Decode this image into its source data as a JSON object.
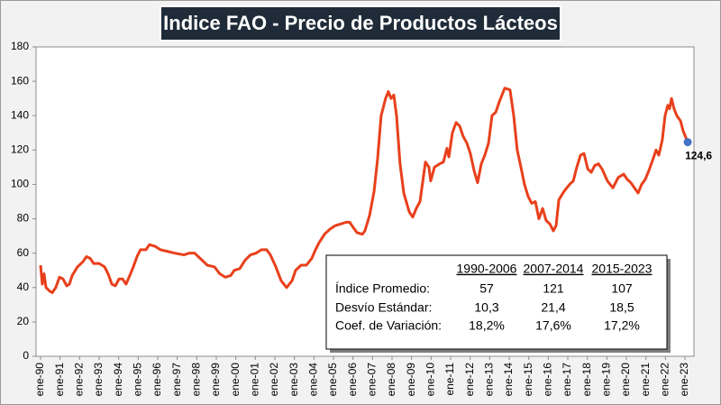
{
  "chart_data": {
    "type": "line",
    "title": "Indice FAO - Precio de Productos Lácteos",
    "color": "#e8401c",
    "label_marker_color": "#4472c4",
    "xlim": [
      1989.77,
      2023.46
    ],
    "ylim": [
      0,
      180
    ],
    "yticks": [
      0,
      20,
      40,
      60,
      80,
      100,
      120,
      140,
      160,
      180
    ],
    "xticks": [
      {
        "value": 1990,
        "label": "ene-90"
      },
      {
        "value": 1991,
        "label": "ene-91"
      },
      {
        "value": 1992,
        "label": "ene-92"
      },
      {
        "value": 1993,
        "label": "ene-93"
      },
      {
        "value": 1994,
        "label": "ene-94"
      },
      {
        "value": 1995,
        "label": "ene-95"
      },
      {
        "value": 1996,
        "label": "ene-96"
      },
      {
        "value": 1997,
        "label": "ene-97"
      },
      {
        "value": 1998,
        "label": "ene-98"
      },
      {
        "value": 1999,
        "label": "ene-99"
      },
      {
        "value": 2000,
        "label": "ene-00"
      },
      {
        "value": 2001,
        "label": "ene-01"
      },
      {
        "value": 2002,
        "label": "ene-02"
      },
      {
        "value": 2003,
        "label": "ene-03"
      },
      {
        "value": 2004,
        "label": "ene-04"
      },
      {
        "value": 2005,
        "label": "ene-05"
      },
      {
        "value": 2006,
        "label": "ene-06"
      },
      {
        "value": 2007,
        "label": "ene-07"
      },
      {
        "value": 2008,
        "label": "ene-08"
      },
      {
        "value": 2009,
        "label": "ene-09"
      },
      {
        "value": 2010,
        "label": "ene-10"
      },
      {
        "value": 2011,
        "label": "ene-11"
      },
      {
        "value": 2012,
        "label": "ene-12"
      },
      {
        "value": 2013,
        "label": "ene-13"
      },
      {
        "value": 2014,
        "label": "ene-14"
      },
      {
        "value": 2015,
        "label": "ene-15"
      },
      {
        "value": 2016,
        "label": "ene-16"
      },
      {
        "value": 2017,
        "label": "ene-17"
      },
      {
        "value": 2018,
        "label": "ene-18"
      },
      {
        "value": 2019,
        "label": "ene-19"
      },
      {
        "value": 2020,
        "label": "ene-20"
      },
      {
        "value": 2021,
        "label": "ene-21"
      },
      {
        "value": 2022,
        "label": "ene-22"
      },
      {
        "value": 2023,
        "label": "ene-23"
      }
    ],
    "x": [
      1990.0,
      1990.09,
      1990.18,
      1990.28,
      1990.46,
      1990.6,
      1990.78,
      1990.97,
      1991.15,
      1991.34,
      1991.48,
      1991.62,
      1991.89,
      1992.17,
      1992.35,
      1992.54,
      1992.72,
      1993.0,
      1993.28,
      1993.46,
      1993.65,
      1993.83,
      1994.02,
      1994.2,
      1994.38,
      1994.57,
      1994.75,
      1994.94,
      1995.12,
      1995.4,
      1995.58,
      1995.86,
      1996.14,
      1996.51,
      1996.88,
      1997.34,
      1997.61,
      1997.89,
      1998.17,
      1998.54,
      1998.91,
      1999.18,
      1999.46,
      1999.74,
      1999.92,
      2000.2,
      2000.48,
      2000.75,
      2001.03,
      2001.31,
      2001.58,
      2001.77,
      2002.05,
      2002.32,
      2002.6,
      2002.88,
      2003.06,
      2003.34,
      2003.61,
      2003.89,
      2004.08,
      2004.26,
      2004.54,
      2004.82,
      2005.09,
      2005.37,
      2005.65,
      2005.83,
      2006.01,
      2006.2,
      2006.48,
      2006.61,
      2006.85,
      2007.08,
      2007.26,
      2007.44,
      2007.67,
      2007.81,
      2007.95,
      2008.09,
      2008.23,
      2008.41,
      2008.6,
      2008.88,
      2009.06,
      2009.24,
      2009.43,
      2009.71,
      2009.89,
      2009.98,
      2010.17,
      2010.44,
      2010.63,
      2010.81,
      2010.91,
      2011.09,
      2011.28,
      2011.46,
      2011.64,
      2011.83,
      2012.01,
      2012.2,
      2012.38,
      2012.57,
      2012.75,
      2012.94,
      2013.12,
      2013.31,
      2013.49,
      2013.77,
      2014.04,
      2014.23,
      2014.41,
      2014.6,
      2014.78,
      2014.97,
      2015.15,
      2015.34,
      2015.52,
      2015.71,
      2015.89,
      2016.08,
      2016.26,
      2016.4,
      2016.54,
      2016.81,
      2017.09,
      2017.28,
      2017.46,
      2017.65,
      2017.83,
      2018.02,
      2018.2,
      2018.38,
      2018.57,
      2018.75,
      2019.03,
      2019.31,
      2019.58,
      2019.86,
      2020.04,
      2020.23,
      2020.41,
      2020.6,
      2020.78,
      2020.97,
      2021.15,
      2021.34,
      2021.52,
      2021.66,
      2021.84,
      2021.98,
      2022.12,
      2022.21,
      2022.31,
      2022.44,
      2022.58,
      2022.77,
      2022.91,
      2023.14
    ],
    "values": [
      53,
      42,
      48,
      40,
      38,
      37,
      40,
      46,
      45,
      41,
      42,
      47,
      52,
      55,
      58,
      57,
      54,
      54,
      52,
      48,
      42,
      41,
      45,
      45,
      42,
      47,
      52,
      58,
      62,
      62,
      65,
      64,
      62,
      61,
      60,
      59,
      60,
      60,
      57,
      53,
      52,
      48,
      46,
      47,
      50,
      51,
      56,
      59,
      60,
      62,
      62,
      59,
      52,
      44,
      40,
      44,
      50,
      53,
      53,
      57,
      62,
      66,
      71,
      74,
      76,
      77,
      78,
      78,
      75,
      72,
      71,
      73,
      82,
      96,
      115,
      140,
      150,
      154,
      150,
      152,
      140,
      112,
      95,
      84,
      81,
      86,
      90,
      113,
      110,
      102,
      110,
      112,
      113,
      121,
      116,
      130,
      136,
      134,
      128,
      124,
      118,
      108,
      101,
      112,
      117,
      124,
      140,
      142,
      148,
      156,
      155,
      140,
      120,
      110,
      100,
      93,
      89,
      90,
      80,
      86,
      79,
      77,
      73,
      76,
      91,
      96,
      100,
      102,
      110,
      117,
      118,
      109,
      107,
      111,
      112,
      109,
      102,
      98,
      104,
      106,
      103,
      101,
      98,
      95,
      100,
      103,
      108,
      114,
      120,
      117,
      126,
      140,
      146,
      144,
      150,
      144,
      140,
      137,
      131,
      124.6
    ],
    "value_labels": [
      null,
      null,
      null,
      null,
      null,
      null,
      null,
      null,
      null,
      null,
      null,
      null,
      null,
      null,
      null,
      null,
      null,
      null,
      null,
      null,
      null,
      null,
      null,
      null,
      null,
      null,
      null,
      null,
      null,
      null,
      null,
      null,
      null,
      null,
      null,
      null,
      null,
      null,
      null,
      null,
      null,
      null,
      null,
      null,
      null,
      null,
      null,
      null,
      null,
      null,
      null,
      null,
      null,
      null,
      null,
      null,
      null,
      null,
      null,
      null,
      null,
      null,
      null,
      null,
      null,
      null,
      null,
      null,
      null,
      null,
      null,
      null,
      null,
      null,
      null,
      null,
      null,
      null,
      null,
      null,
      null,
      null,
      null,
      null,
      null,
      null,
      null,
      null,
      null,
      null,
      null,
      null,
      null,
      null,
      null,
      null,
      null,
      null,
      null,
      null,
      null,
      null,
      null,
      null,
      null,
      null,
      null,
      null,
      null,
      null,
      null,
      null,
      null,
      null,
      null,
      null,
      null,
      null,
      null,
      null,
      null,
      null,
      null,
      null,
      null,
      null,
      null,
      null,
      null,
      null,
      null,
      null,
      null,
      null,
      null,
      null,
      null,
      null,
      null,
      null,
      null,
      null,
      null,
      null,
      null,
      null,
      null,
      null,
      null,
      null,
      null,
      null,
      null,
      null,
      null,
      null,
      null,
      null,
      null,
      "124,6"
    ],
    "table": {
      "columns": [
        "1990-2006",
        "2007-2014",
        "2015-2023"
      ],
      "rows": [
        {
          "label": "Índice Promedio:",
          "values": [
            57,
            121,
            107
          ]
        },
        {
          "label": "Desvío Estándar:",
          "values": [
            10.3,
            21.4,
            18.5
          ],
          "value_labels": [
            "10,3",
            "21,4",
            "18,5"
          ]
        },
        {
          "label": "Coef. de Variación:",
          "values": [
            18.2,
            17.6,
            17.2
          ],
          "value_labels": [
            "18,2%",
            "17,6%",
            "17,2%"
          ]
        }
      ]
    }
  }
}
